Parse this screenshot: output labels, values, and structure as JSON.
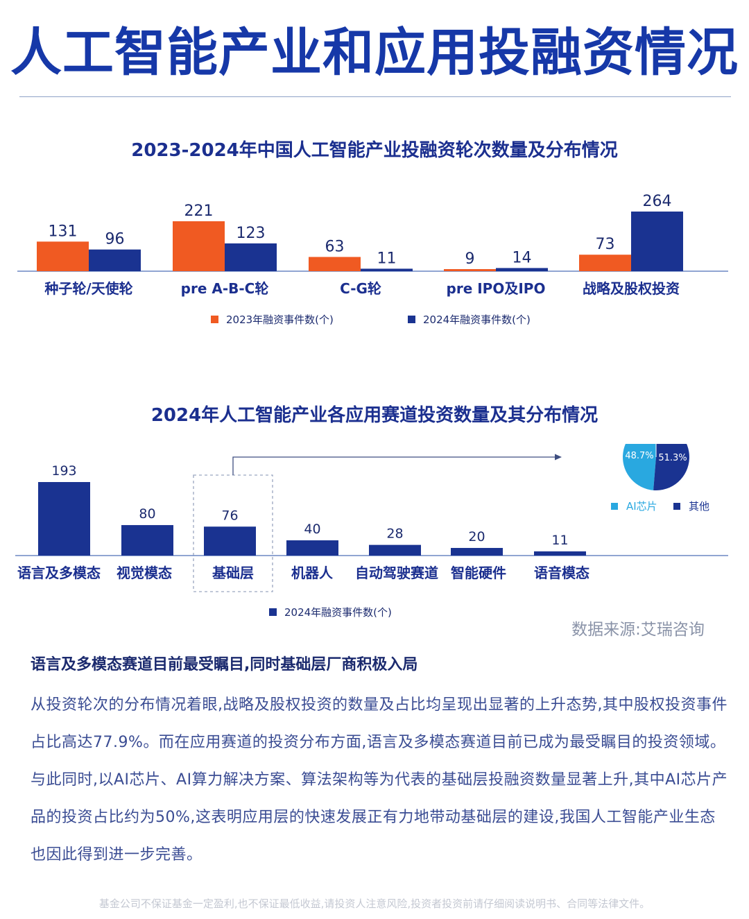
{
  "page": {
    "title": "人工智能产业和应用投融资情况",
    "source": "数据来源:艾瑞咨询",
    "subheading": "语言及多模态赛道目前最受瞩目,同时基础层厂商积极入局",
    "body": "从投资轮次的分布情况着眼,战略及股权投资的数量及占比均呈现出显著的上升态势,其中股权投资事件占比高达77.9%。而在应用赛道的投资分布方面,语言及多模态赛道目前已成为最受瞩目的投资领域。与此同时,以AI芯片、AI算力解决方案、算法架构等为代表的基础层投融资数量显著上升,其中AI芯片产品的投资占比约为50%,这表明应用层的快速发展正有力地带动基础层的建设,我国人工智能产业生态也因此得到进一步完善。",
    "disclaimer": "基金公司不保证基金一定盈利,也不保证最低收益,请投资人注意风险,投资者投资前请仔细阅读说明书、合同等法律文件。"
  },
  "colors": {
    "orange": "#f05a22",
    "navy": "#1a3391",
    "light_blue": "#29a8e0",
    "axis": "#6c87c4",
    "title_blue": "#1638a8"
  },
  "chart_data": [
    {
      "type": "bar",
      "title": "2023-2024年中国人工智能产业投融资轮次数量及分布情况",
      "categories": [
        "种子轮/天使轮",
        "pre A-B-C轮",
        "C-G轮",
        "pre IPO及IPO",
        "战略及股权投资"
      ],
      "series": [
        {
          "name": "2023年融资事件数(个)",
          "values": [
            131,
            221,
            63,
            9,
            73
          ],
          "color": "#f05a22"
        },
        {
          "name": "2024年融资事件数(个)",
          "values": [
            96,
            123,
            11,
            14,
            264
          ],
          "color": "#1a3391"
        }
      ],
      "ylim": [
        0,
        264
      ],
      "legend": "bottom-center"
    },
    {
      "type": "bar",
      "title": "2024年人工智能产业各应用赛道投资数量及其分布情况",
      "categories": [
        "语言及多模态",
        "视觉模态",
        "基础层",
        "机器人",
        "自动驾驶赛道",
        "智能硬件",
        "语音模态"
      ],
      "series": [
        {
          "name": "2024年融资事件数(个)",
          "values": [
            193,
            80,
            76,
            40,
            28,
            20,
            11
          ],
          "color": "#1a3391"
        }
      ],
      "ylim": [
        0,
        193
      ],
      "highlight": "基础层",
      "legend": "bottom-center"
    },
    {
      "type": "pie",
      "labels": [
        "AI芯片",
        "其他"
      ],
      "values": [
        48.7,
        51.3
      ],
      "value_labels": [
        "48.7%",
        "51.3%"
      ],
      "colors": [
        "#29a8e0",
        "#1a3391"
      ]
    }
  ]
}
